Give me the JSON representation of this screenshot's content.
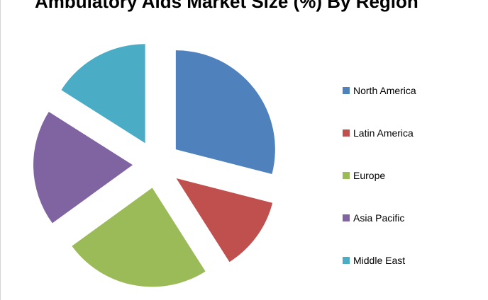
{
  "chart_data": {
    "type": "pie",
    "title": "Ambulatory Aids Market Size (%) By Region",
    "categories": [
      "North America",
      "Latin America",
      "Europe",
      "Asia Pacific",
      "Middle East"
    ],
    "values": [
      29,
      12,
      24,
      19,
      16
    ],
    "exploded": true,
    "legend_position": "right",
    "colors": [
      "#4F81BD",
      "#C0504D",
      "#9BBB59",
      "#8064A2",
      "#4BACC6"
    ]
  }
}
